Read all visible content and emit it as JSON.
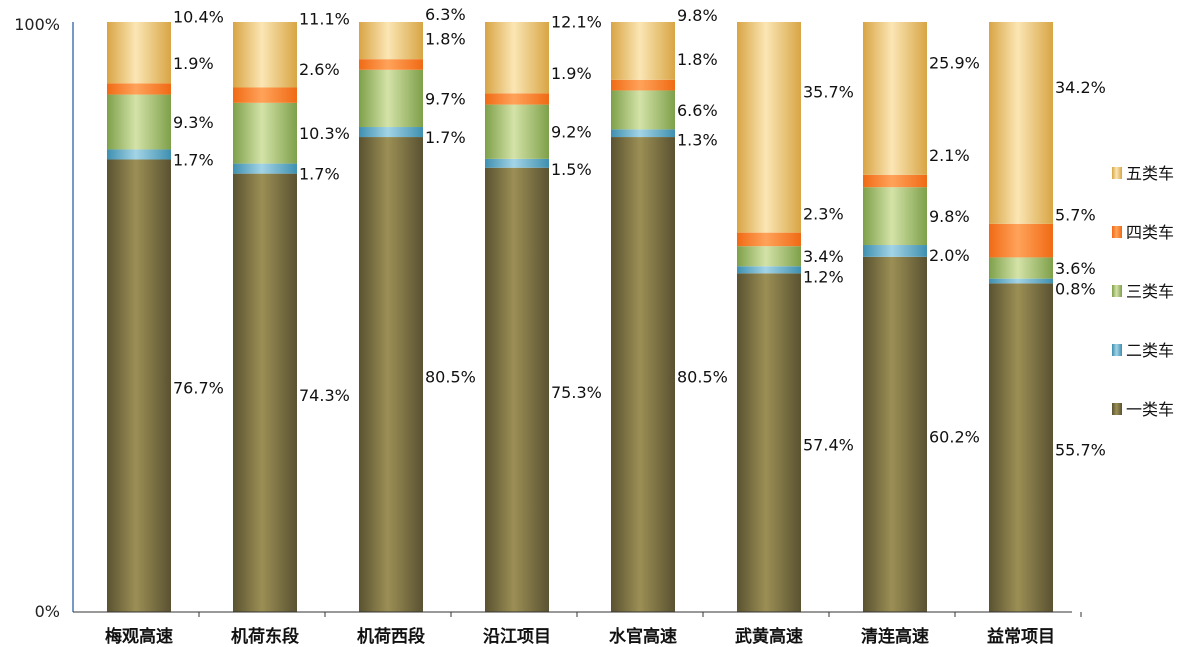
{
  "chart_data": {
    "type": "bar",
    "stacked": true,
    "percent": true,
    "categories": [
      "梅观高速",
      "机荷东段",
      "机荷西段",
      "沿江项目",
      "水官高速",
      "武黄高速",
      "清连高速",
      "益常项目"
    ],
    "series": [
      {
        "name": "一类车",
        "values": [
          76.7,
          74.3,
          80.5,
          75.3,
          80.5,
          57.4,
          60.2,
          55.7
        ],
        "labels": [
          "76.7%",
          "74.3%",
          "80.5%",
          "75.3%",
          "80.5%",
          "57.4%",
          "60.2%",
          "55.7%"
        ]
      },
      {
        "name": "二类车",
        "values": [
          1.7,
          1.7,
          1.7,
          1.5,
          1.3,
          1.2,
          2.0,
          0.8
        ],
        "labels": [
          "1.7%",
          "1.7%",
          "1.7%",
          "1.5%",
          "1.3%",
          "1.2%",
          "2.0%",
          "0.8%"
        ]
      },
      {
        "name": "三类车",
        "values": [
          9.3,
          10.3,
          9.7,
          9.2,
          6.6,
          3.4,
          9.8,
          3.6
        ],
        "labels": [
          "9.3%",
          "10.3%",
          "9.7%",
          "9.2%",
          "6.6%",
          "3.4%",
          "9.8%",
          "3.6%"
        ]
      },
      {
        "name": "四类车",
        "values": [
          1.9,
          2.6,
          1.8,
          1.9,
          1.8,
          2.3,
          2.1,
          5.7
        ],
        "labels": [
          "1.9%",
          "2.6%",
          "1.8%",
          "1.9%",
          "1.8%",
          "2.3%",
          "2.1%",
          "5.7%"
        ]
      },
      {
        "name": "五类车",
        "values": [
          10.4,
          11.1,
          6.3,
          12.1,
          9.8,
          35.7,
          25.9,
          34.2
        ],
        "labels": [
          "10.4%",
          "11.1%",
          "6.3%",
          "12.1%",
          "9.8%",
          "35.7%",
          "25.9%",
          "34.2%"
        ]
      }
    ],
    "yticks": [
      "0%",
      "100%"
    ],
    "ylim": [
      0,
      100
    ],
    "legend_position": "right",
    "colors": {
      "一类车": {
        "dark": "#5a5231",
        "light": "#9c8f55"
      },
      "二类车": {
        "dark": "#3e8fb0",
        "light": "#a3d4e6"
      },
      "三类车": {
        "dark": "#7ea04a",
        "light": "#d4e3a8"
      },
      "四类车": {
        "dark": "#f06a14",
        "light": "#ffa35a"
      },
      "五类车": {
        "dark": "#d8a545",
        "light": "#fbe6b4"
      }
    },
    "axis_color": "#4a78b0"
  }
}
